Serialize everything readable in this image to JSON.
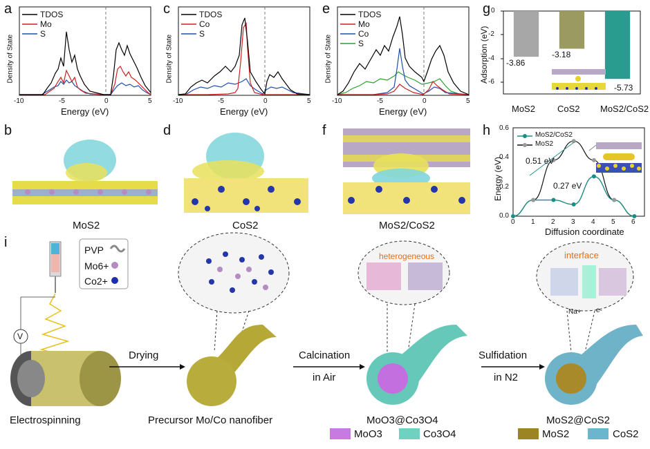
{
  "panels": {
    "a": "a",
    "b": "b",
    "c": "c",
    "d": "d",
    "e": "e",
    "f": "f",
    "g": "g",
    "h": "h",
    "i": "i"
  },
  "dos": {
    "xlabel": "Energy (eV)",
    "ylabel": "Density of State",
    "xticks": [
      "-10",
      "-5",
      "0",
      "5"
    ],
    "a_legend": [
      "TDOS",
      "Mo",
      "S"
    ],
    "c_legend": [
      "TDOS",
      "Co",
      "S"
    ],
    "e_legend": [
      "TDOS",
      "Mo",
      "Co",
      "S"
    ]
  },
  "colors": {
    "tdos": "#000000",
    "mo": "#cc1f1f",
    "s": "#1f4fa8",
    "co_a": "#cc1f1f",
    "co_e": "#1f4fa8",
    "s_e": "#2e9e2e",
    "bar_mos2": "#a7a7a7",
    "bar_cos2": "#9b9a61",
    "bar_het": "#2a9c8f",
    "moo3": "#c77be0",
    "co3o4": "#6fd2c0",
    "mos2": "#9c8324",
    "cos2": "#6bb5cf"
  },
  "chart_data": [
    {
      "type": "bar",
      "panel": "g",
      "categories": [
        "MoS2",
        "CoS2",
        "MoS2/CoS2"
      ],
      "values": [
        -3.86,
        -3.18,
        -5.73
      ],
      "value_labels": [
        "-3.86",
        "-3.18",
        "-5.73"
      ],
      "ylabel": "Adsorption (eV)",
      "ylim": [
        -7,
        0
      ],
      "yticks": [
        "0",
        "-2",
        "-4",
        "-6"
      ]
    },
    {
      "type": "line",
      "panel": "h",
      "xlabel": "Diffusion coordinate",
      "ylabel": "Energy (eV)",
      "xlim": [
        0,
        6.5
      ],
      "ylim": [
        0,
        0.6
      ],
      "xticks": [
        "0",
        "1",
        "2",
        "3",
        "4",
        "5",
        "6"
      ],
      "yticks": [
        "0.0",
        "0.2",
        "0.4",
        "0.6"
      ],
      "series": [
        {
          "name": "MoS2/CoS2",
          "x": [
            0,
            1,
            2,
            3,
            4,
            5,
            6
          ],
          "y": [
            0.0,
            0.11,
            0.11,
            0.08,
            0.27,
            0.11,
            0.0
          ]
        },
        {
          "name": "MoS2",
          "x": [
            1,
            2,
            3,
            4,
            5
          ],
          "y": [
            0.11,
            0.38,
            0.51,
            0.38,
            0.11
          ]
        }
      ],
      "annotations": [
        "0.51 eV",
        "0.27 eV"
      ]
    }
  ],
  "structures": {
    "b": "MoS2",
    "d": "CoS2",
    "f": "MoS2/CoS2"
  },
  "schematic": {
    "legend": [
      "PVP",
      "Mo6+",
      "Co2+"
    ],
    "steps": [
      "Electrospinning",
      "Drying",
      "Precursor Mo/Co nanofiber",
      "Calcination",
      "in Air",
      "MoO3@Co3O4",
      "Sulfidation",
      "in N2",
      "MoS2@CoS2"
    ],
    "callouts": [
      "heterogeneous",
      "interface",
      "Na+",
      "e-"
    ],
    "material_legend": [
      "MoO3",
      "Co3O4",
      "MoS2",
      "CoS2"
    ],
    "voltage": "V"
  }
}
